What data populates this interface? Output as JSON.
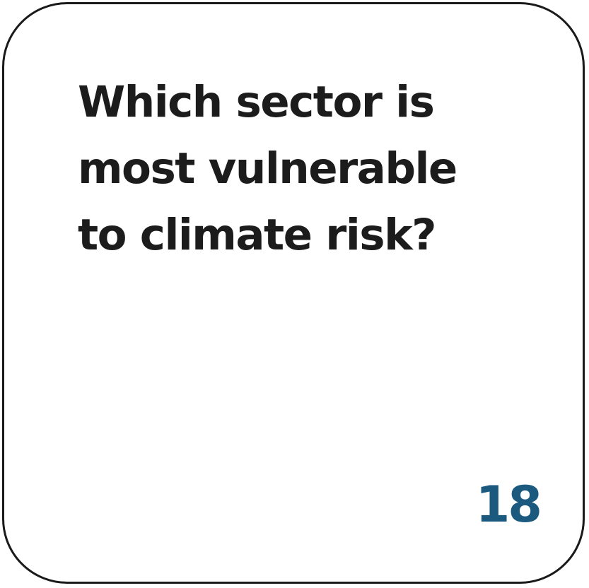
{
  "card": {
    "question_lines": [
      "Which sector is",
      "most vulnerable",
      "to climate risk?"
    ],
    "number": "18",
    "number_color": "#1b5a7e",
    "text_color": "#1c1c1c",
    "border_color": "#1a1a1a"
  }
}
